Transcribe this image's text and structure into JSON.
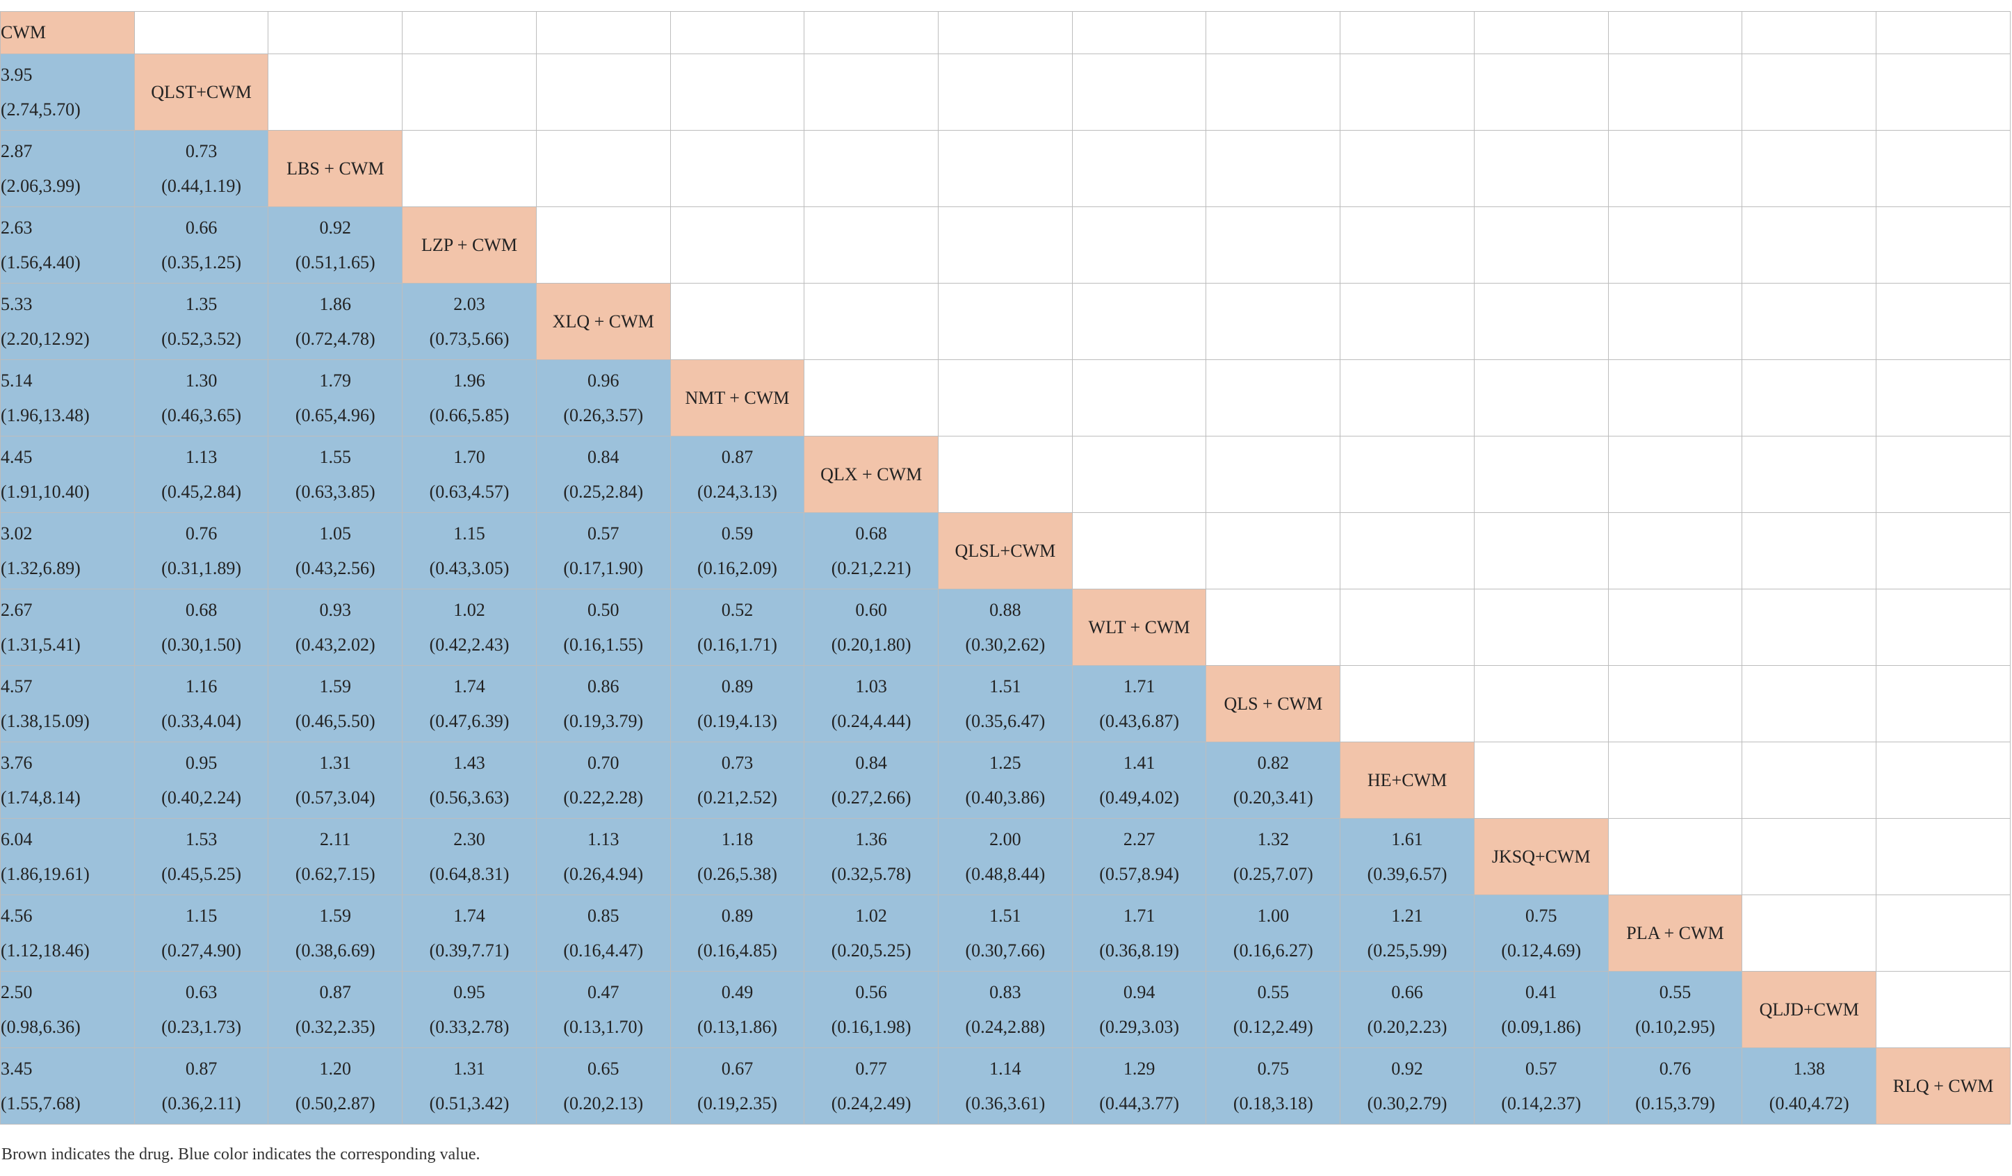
{
  "colors": {
    "drug_cell": "#f2c4aa",
    "value_cell": "#9cc1db",
    "empty_cell": "#ffffff",
    "grid": "#bdbdbd"
  },
  "drugs": [
    "CWM",
    "QLST+CWM",
    "LBS + CWM",
    "LZP + CWM",
    "XLQ + CWM",
    "NMT + CWM",
    "QLX + CWM",
    "QLSL+CWM",
    "WLT + CWM",
    "QLS + CWM",
    "HE+CWM",
    "JKSQ+CWM",
    "PLA + CWM",
    "QLJD+CWM",
    "RLQ + CWM"
  ],
  "rows": [
    [],
    [
      {
        "est": "3.95",
        "ci": "(2.74,5.70)"
      }
    ],
    [
      {
        "est": "2.87",
        "ci": "(2.06,3.99)"
      },
      {
        "est": "0.73",
        "ci": "(0.44,1.19)"
      }
    ],
    [
      {
        "est": "2.63",
        "ci": "(1.56,4.40)"
      },
      {
        "est": "0.66",
        "ci": "(0.35,1.25)"
      },
      {
        "est": "0.92",
        "ci": "(0.51,1.65)"
      }
    ],
    [
      {
        "est": "5.33",
        "ci": "(2.20,12.92)"
      },
      {
        "est": "1.35",
        "ci": "(0.52,3.52)"
      },
      {
        "est": "1.86",
        "ci": "(0.72,4.78)"
      },
      {
        "est": "2.03",
        "ci": "(0.73,5.66)"
      }
    ],
    [
      {
        "est": "5.14",
        "ci": "(1.96,13.48)"
      },
      {
        "est": "1.30",
        "ci": "(0.46,3.65)"
      },
      {
        "est": "1.79",
        "ci": "(0.65,4.96)"
      },
      {
        "est": "1.96",
        "ci": "(0.66,5.85)"
      },
      {
        "est": "0.96",
        "ci": "(0.26,3.57)"
      }
    ],
    [
      {
        "est": "4.45",
        "ci": "(1.91,10.40)"
      },
      {
        "est": "1.13",
        "ci": "(0.45,2.84)"
      },
      {
        "est": "1.55",
        "ci": "(0.63,3.85)"
      },
      {
        "est": "1.70",
        "ci": "(0.63,4.57)"
      },
      {
        "est": "0.84",
        "ci": "(0.25,2.84)"
      },
      {
        "est": "0.87",
        "ci": "(0.24,3.13)"
      }
    ],
    [
      {
        "est": "3.02",
        "ci": "(1.32,6.89)"
      },
      {
        "est": "0.76",
        "ci": "(0.31,1.89)"
      },
      {
        "est": "1.05",
        "ci": "(0.43,2.56)"
      },
      {
        "est": "1.15",
        "ci": "(0.43,3.05)"
      },
      {
        "est": "0.57",
        "ci": "(0.17,1.90)"
      },
      {
        "est": "0.59",
        "ci": "(0.16,2.09)"
      },
      {
        "est": "0.68",
        "ci": "(0.21,2.21)"
      }
    ],
    [
      {
        "est": "2.67",
        "ci": "(1.31,5.41)"
      },
      {
        "est": "0.68",
        "ci": "(0.30,1.50)"
      },
      {
        "est": "0.93",
        "ci": "(0.43,2.02)"
      },
      {
        "est": "1.02",
        "ci": "(0.42,2.43)"
      },
      {
        "est": "0.50",
        "ci": "(0.16,1.55)"
      },
      {
        "est": "0.52",
        "ci": "(0.16,1.71)"
      },
      {
        "est": "0.60",
        "ci": "(0.20,1.80)"
      },
      {
        "est": "0.88",
        "ci": "(0.30,2.62)"
      }
    ],
    [
      {
        "est": "4.57",
        "ci": "(1.38,15.09)"
      },
      {
        "est": "1.16",
        "ci": "(0.33,4.04)"
      },
      {
        "est": "1.59",
        "ci": "(0.46,5.50)"
      },
      {
        "est": "1.74",
        "ci": "(0.47,6.39)"
      },
      {
        "est": "0.86",
        "ci": "(0.19,3.79)"
      },
      {
        "est": "0.89",
        "ci": "(0.19,4.13)"
      },
      {
        "est": "1.03",
        "ci": "(0.24,4.44)"
      },
      {
        "est": "1.51",
        "ci": "(0.35,6.47)"
      },
      {
        "est": "1.71",
        "ci": "(0.43,6.87)"
      }
    ],
    [
      {
        "est": "3.76",
        "ci": "(1.74,8.14)"
      },
      {
        "est": "0.95",
        "ci": "(0.40,2.24)"
      },
      {
        "est": "1.31",
        "ci": "(0.57,3.04)"
      },
      {
        "est": "1.43",
        "ci": "(0.56,3.63)"
      },
      {
        "est": "0.70",
        "ci": "(0.22,2.28)"
      },
      {
        "est": "0.73",
        "ci": "(0.21,2.52)"
      },
      {
        "est": "0.84",
        "ci": "(0.27,2.66)"
      },
      {
        "est": "1.25",
        "ci": "(0.40,3.86)"
      },
      {
        "est": "1.41",
        "ci": "(0.49,4.02)"
      },
      {
        "est": "0.82",
        "ci": "(0.20,3.41)"
      }
    ],
    [
      {
        "est": "6.04",
        "ci": "(1.86,19.61)"
      },
      {
        "est": "1.53",
        "ci": "(0.45,5.25)"
      },
      {
        "est": "2.11",
        "ci": "(0.62,7.15)"
      },
      {
        "est": "2.30",
        "ci": "(0.64,8.31)"
      },
      {
        "est": "1.13",
        "ci": "(0.26,4.94)"
      },
      {
        "est": "1.18",
        "ci": "(0.26,5.38)"
      },
      {
        "est": "1.36",
        "ci": "(0.32,5.78)"
      },
      {
        "est": "2.00",
        "ci": "(0.48,8.44)"
      },
      {
        "est": "2.27",
        "ci": "(0.57,8.94)"
      },
      {
        "est": "1.32",
        "ci": "(0.25,7.07)"
      },
      {
        "est": "1.61",
        "ci": "(0.39,6.57)"
      }
    ],
    [
      {
        "est": "4.56",
        "ci": "(1.12,18.46)"
      },
      {
        "est": "1.15",
        "ci": "(0.27,4.90)"
      },
      {
        "est": "1.59",
        "ci": "(0.38,6.69)"
      },
      {
        "est": "1.74",
        "ci": "(0.39,7.71)"
      },
      {
        "est": "0.85",
        "ci": "(0.16,4.47)"
      },
      {
        "est": "0.89",
        "ci": "(0.16,4.85)"
      },
      {
        "est": "1.02",
        "ci": "(0.20,5.25)"
      },
      {
        "est": "1.51",
        "ci": "(0.30,7.66)"
      },
      {
        "est": "1.71",
        "ci": "(0.36,8.19)"
      },
      {
        "est": "1.00",
        "ci": "(0.16,6.27)"
      },
      {
        "est": "1.21",
        "ci": "(0.25,5.99)"
      },
      {
        "est": "0.75",
        "ci": "(0.12,4.69)"
      }
    ],
    [
      {
        "est": "2.50",
        "ci": "(0.98,6.36)"
      },
      {
        "est": "0.63",
        "ci": "(0.23,1.73)"
      },
      {
        "est": "0.87",
        "ci": "(0.32,2.35)"
      },
      {
        "est": "0.95",
        "ci": "(0.33,2.78)"
      },
      {
        "est": "0.47",
        "ci": "(0.13,1.70)"
      },
      {
        "est": "0.49",
        "ci": "(0.13,1.86)"
      },
      {
        "est": "0.56",
        "ci": "(0.16,1.98)"
      },
      {
        "est": "0.83",
        "ci": "(0.24,2.88)"
      },
      {
        "est": "0.94",
        "ci": "(0.29,3.03)"
      },
      {
        "est": "0.55",
        "ci": "(0.12,2.49)"
      },
      {
        "est": "0.66",
        "ci": "(0.20,2.23)"
      },
      {
        "est": "0.41",
        "ci": "(0.09,1.86)"
      },
      {
        "est": "0.55",
        "ci": "(0.10,2.95)"
      }
    ],
    [
      {
        "est": "3.45",
        "ci": "(1.55,7.68)"
      },
      {
        "est": "0.87",
        "ci": "(0.36,2.11)"
      },
      {
        "est": "1.20",
        "ci": "(0.50,2.87)"
      },
      {
        "est": "1.31",
        "ci": "(0.51,3.42)"
      },
      {
        "est": "0.65",
        "ci": "(0.20,2.13)"
      },
      {
        "est": "0.67",
        "ci": "(0.19,2.35)"
      },
      {
        "est": "0.77",
        "ci": "(0.24,2.49)"
      },
      {
        "est": "1.14",
        "ci": "(0.36,3.61)"
      },
      {
        "est": "1.29",
        "ci": "(0.44,3.77)"
      },
      {
        "est": "0.75",
        "ci": "(0.18,3.18)"
      },
      {
        "est": "0.92",
        "ci": "(0.30,2.79)"
      },
      {
        "est": "0.57",
        "ci": "(0.14,2.37)"
      },
      {
        "est": "0.76",
        "ci": "(0.15,3.79)"
      },
      {
        "est": "1.38",
        "ci": "(0.40,4.72)"
      }
    ]
  ],
  "footnote": "Brown indicates the drug. Blue color indicates the corresponding value."
}
